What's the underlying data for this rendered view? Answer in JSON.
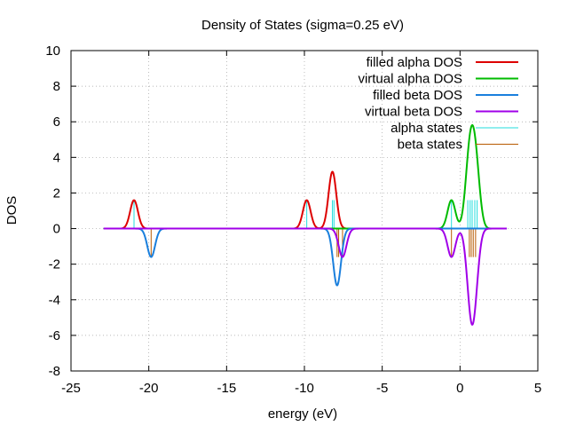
{
  "chart_data": {
    "type": "line",
    "title": "Density of States (sigma=0.25 eV)",
    "xlabel": "energy (eV)",
    "ylabel": "DOS",
    "xlim": [
      -25,
      5
    ],
    "ylim": [
      -8,
      10
    ],
    "xticks": [
      -25,
      -20,
      -15,
      -10,
      -5,
      0,
      5
    ],
    "yticks": [
      -8,
      -6,
      -4,
      -2,
      0,
      2,
      4,
      6,
      8,
      10
    ],
    "grid": true,
    "legend_position": "top-right",
    "sigma": 0.25,
    "curve_range": [
      -22.9,
      3.0
    ],
    "series": [
      {
        "name": "filled alpha DOS",
        "color": "#dd0000",
        "sign": 1,
        "levels": [
          -20.95,
          -9.85,
          -8.2
        ],
        "weights": [
          1,
          1,
          2
        ]
      },
      {
        "name": "virtual alpha DOS",
        "color": "#00bb00",
        "sign": 1,
        "levels": [
          -0.55,
          0.5,
          0.65,
          0.78,
          0.95,
          1.1
        ],
        "weights": [
          1,
          1,
          1,
          1,
          1,
          1
        ]
      },
      {
        "name": "filled beta DOS",
        "color": "#1a7fdd",
        "sign": -1,
        "levels": [
          -19.85,
          -7.9
        ],
        "weights": [
          1,
          2
        ]
      },
      {
        "name": "virtual beta DOS",
        "color": "#a000e8",
        "sign": -1,
        "levels": [
          -7.55,
          -0.55,
          0.6,
          0.72,
          0.85,
          1.0
        ],
        "weights": [
          1,
          1,
          1,
          1,
          1,
          1
        ]
      }
    ],
    "stick_series": [
      {
        "name": "alpha states",
        "color": "#22dddd",
        "direction": 1,
        "height": 1.6,
        "levels": [
          -20.95,
          -9.85,
          -8.2,
          -8.1,
          -0.55,
          0.5,
          0.65,
          0.78,
          0.95,
          1.1
        ]
      },
      {
        "name": "beta states",
        "color": "#b85a00",
        "direction": -1,
        "height": 1.6,
        "levels": [
          -19.85,
          -7.9,
          -7.8,
          -7.55,
          -0.55,
          0.6,
          0.72,
          0.85,
          1.0
        ]
      }
    ]
  }
}
